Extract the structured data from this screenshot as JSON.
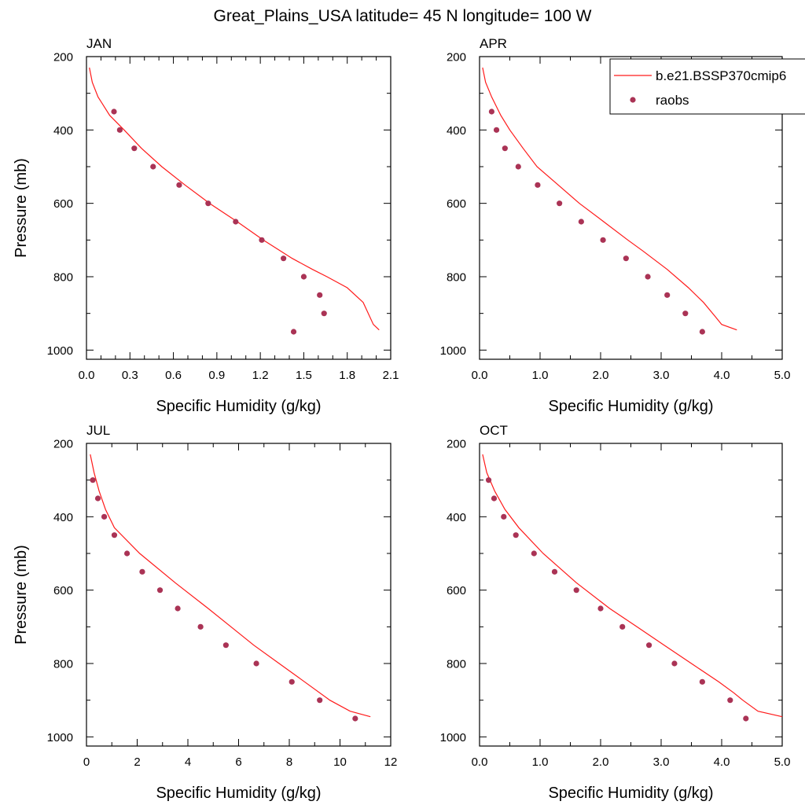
{
  "figure": {
    "title": "Great_Plains_USA  latitude= 45 N longitude= 100 W"
  },
  "legend": {
    "model_label": "b.e21.BSSP370cmip6",
    "obs_label": "raobs"
  },
  "colors": {
    "model_line": "#ff1a1a",
    "obs_marker": "#aa3355",
    "axes": "#000000"
  },
  "chart_data": [
    {
      "type": "scatter",
      "panel_label": "JAN",
      "xlabel": "Specific Humidity (g/kg)",
      "ylabel": "Pressure (mb)",
      "xlim": [
        0,
        2.1
      ],
      "ylim": [
        200,
        1025
      ],
      "y_inverted": true,
      "xticks": [
        "0.0",
        "0.3",
        "0.6",
        "0.9",
        "1.2",
        "1.5",
        "1.8",
        "2.1"
      ],
      "xtick_values": [
        0,
        0.3,
        0.6,
        0.9,
        1.2,
        1.5,
        1.8,
        2.1
      ],
      "xminor": [
        0.1,
        0.2,
        0.4,
        0.5,
        0.7,
        0.8,
        1.0,
        1.1,
        1.3,
        1.4,
        1.6,
        1.7,
        1.9,
        2.0
      ],
      "yticks": [
        "200",
        "400",
        "600",
        "800",
        "1000"
      ],
      "ytick_values": [
        200,
        400,
        600,
        800,
        1000
      ],
      "yminor": [
        300,
        500,
        700,
        900
      ],
      "series": [
        {
          "name": "b.e21.BSSP370cmip6",
          "kind": "line",
          "p": [
            230,
            270,
            310,
            360,
            400,
            450,
            500,
            550,
            600,
            650,
            700,
            750,
            780,
            800,
            830,
            870,
            930,
            945
          ],
          "q": [
            0.02,
            0.04,
            0.08,
            0.16,
            0.26,
            0.38,
            0.52,
            0.68,
            0.85,
            1.04,
            1.22,
            1.42,
            1.56,
            1.66,
            1.8,
            1.91,
            1.98,
            2.02
          ]
        },
        {
          "name": "raobs",
          "kind": "scatter",
          "p": [
            350,
            400,
            450,
            500,
            550,
            600,
            650,
            700,
            750,
            800,
            850,
            900,
            950
          ],
          "q": [
            0.19,
            0.23,
            0.33,
            0.46,
            0.64,
            0.84,
            1.03,
            1.21,
            1.36,
            1.5,
            1.61,
            1.64,
            1.43
          ]
        }
      ]
    },
    {
      "type": "scatter",
      "panel_label": "APR",
      "xlabel": "Specific Humidity (g/kg)",
      "ylabel": "",
      "xlim": [
        0,
        5.0
      ],
      "ylim": [
        200,
        1025
      ],
      "y_inverted": true,
      "xticks": [
        "0.0",
        "1.0",
        "2.0",
        "3.0",
        "4.0",
        "5.0"
      ],
      "xtick_values": [
        0,
        1,
        2,
        3,
        4,
        5
      ],
      "xminor": [
        0.5,
        1.5,
        2.5,
        3.5,
        4.5
      ],
      "yticks": [
        "200",
        "400",
        "600",
        "800",
        "1000"
      ],
      "ytick_values": [
        200,
        400,
        600,
        800,
        1000
      ],
      "yminor": [
        300,
        500,
        700,
        900
      ],
      "series": [
        {
          "name": "b.e21.BSSP370cmip6",
          "kind": "line",
          "p": [
            230,
            270,
            310,
            360,
            400,
            450,
            500,
            550,
            600,
            650,
            700,
            730,
            780,
            830,
            870,
            910,
            930,
            945
          ],
          "q": [
            0.05,
            0.1,
            0.2,
            0.35,
            0.5,
            0.72,
            0.95,
            1.3,
            1.65,
            2.05,
            2.45,
            2.7,
            3.1,
            3.45,
            3.7,
            3.9,
            4.0,
            4.25
          ]
        },
        {
          "name": "raobs",
          "kind": "scatter",
          "p": [
            350,
            400,
            450,
            500,
            550,
            600,
            650,
            700,
            750,
            800,
            850,
            900,
            950
          ],
          "q": [
            0.2,
            0.28,
            0.42,
            0.64,
            0.96,
            1.32,
            1.68,
            2.04,
            2.42,
            2.78,
            3.1,
            3.4,
            3.68
          ]
        }
      ]
    },
    {
      "type": "scatter",
      "panel_label": "JUL",
      "xlabel": "Specific Humidity (g/kg)",
      "ylabel": "Pressure (mb)",
      "xlim": [
        0,
        12
      ],
      "ylim": [
        200,
        1025
      ],
      "y_inverted": true,
      "xticks": [
        "0",
        "2",
        "4",
        "6",
        "8",
        "10",
        "12"
      ],
      "xtick_values": [
        0,
        2,
        4,
        6,
        8,
        10,
        12
      ],
      "xminor": [
        1,
        3,
        5,
        7,
        9,
        11
      ],
      "yticks": [
        "200",
        "400",
        "600",
        "800",
        "1000"
      ],
      "ytick_values": [
        200,
        400,
        600,
        800,
        1000
      ],
      "yminor": [
        300,
        500,
        700,
        900
      ],
      "series": [
        {
          "name": "b.e21.BSSP370cmip6",
          "kind": "line",
          "p": [
            230,
            280,
            330,
            380,
            430,
            500,
            580,
            650,
            700,
            750,
            800,
            850,
            900,
            930,
            945
          ],
          "q": [
            0.15,
            0.3,
            0.5,
            0.75,
            1.1,
            2.1,
            3.5,
            4.8,
            5.7,
            6.6,
            7.6,
            8.6,
            9.6,
            10.4,
            11.2
          ]
        },
        {
          "name": "raobs",
          "kind": "scatter",
          "p": [
            300,
            350,
            400,
            450,
            500,
            550,
            600,
            650,
            700,
            750,
            800,
            850,
            900,
            950
          ],
          "q": [
            0.25,
            0.45,
            0.7,
            1.1,
            1.6,
            2.2,
            2.9,
            3.6,
            4.5,
            5.5,
            6.7,
            8.1,
            9.2,
            10.6
          ]
        }
      ]
    },
    {
      "type": "scatter",
      "panel_label": "OCT",
      "xlabel": "Specific Humidity (g/kg)",
      "ylabel": "",
      "xlim": [
        0,
        5.0
      ],
      "ylim": [
        200,
        1025
      ],
      "y_inverted": true,
      "xticks": [
        "0.0",
        "1.0",
        "2.0",
        "3.0",
        "4.0",
        "5.0"
      ],
      "xtick_values": [
        0,
        1,
        2,
        3,
        4,
        5
      ],
      "xminor": [
        0.5,
        1.5,
        2.5,
        3.5,
        4.5
      ],
      "yticks": [
        "200",
        "400",
        "600",
        "800",
        "1000"
      ],
      "ytick_values": [
        200,
        400,
        600,
        800,
        1000
      ],
      "yminor": [
        300,
        500,
        700,
        900
      ],
      "series": [
        {
          "name": "b.e21.BSSP370cmip6",
          "kind": "line",
          "p": [
            230,
            280,
            330,
            380,
            430,
            500,
            580,
            650,
            700,
            750,
            800,
            850,
            880,
            900,
            930,
            945
          ],
          "q": [
            0.05,
            0.12,
            0.25,
            0.42,
            0.65,
            1.05,
            1.6,
            2.15,
            2.6,
            3.05,
            3.5,
            3.95,
            4.2,
            4.35,
            4.6,
            5.0
          ]
        },
        {
          "name": "raobs",
          "kind": "scatter",
          "p": [
            300,
            350,
            400,
            450,
            500,
            550,
            600,
            650,
            700,
            750,
            800,
            850,
            900,
            950
          ],
          "q": [
            0.15,
            0.24,
            0.4,
            0.6,
            0.9,
            1.24,
            1.6,
            2.0,
            2.36,
            2.8,
            3.22,
            3.68,
            4.14,
            4.4
          ]
        }
      ]
    }
  ]
}
